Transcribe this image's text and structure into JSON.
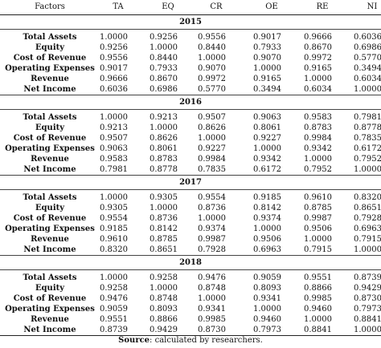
{
  "header": [
    "Factors",
    "TA",
    "EQ",
    "CR",
    "OE",
    "RE",
    "NI"
  ],
  "sections": [
    {
      "year": "2015",
      "rows": [
        {
          "factor": "Total Assets",
          "values": [
            "1.0000",
            "0.9256",
            "0.9556",
            "0.9017",
            "0.9666",
            "0.6036"
          ]
        },
        {
          "factor": "Equity",
          "values": [
            "0.9256",
            "1.0000",
            "0.8440",
            "0.7933",
            "0.8670",
            "0.6986"
          ]
        },
        {
          "factor": "Cost of Revenue",
          "values": [
            "0.9556",
            "0.8440",
            "1.0000",
            "0.9070",
            "0.9972",
            "0.5770"
          ]
        },
        {
          "factor": "Operating Expenses",
          "values": [
            "0.9017",
            "0.7933",
            "0.9070",
            "1.0000",
            "0.9165",
            "0.3494"
          ]
        },
        {
          "factor": "Revenue",
          "values": [
            "0.9666",
            "0.8670",
            "0.9972",
            "0.9165",
            "1.0000",
            "0.6034"
          ]
        },
        {
          "factor": "Net Income",
          "values": [
            "0.6036",
            "0.6986",
            "0.5770",
            "0.3494",
            "0.6034",
            "1.0000"
          ]
        }
      ]
    },
    {
      "year": "2016",
      "rows": [
        {
          "factor": "Total Assets",
          "values": [
            "1.0000",
            "0.9213",
            "0.9507",
            "0.9063",
            "0.9583",
            "0.7981"
          ]
        },
        {
          "factor": "Equity",
          "values": [
            "0.9213",
            "1.0000",
            "0.8626",
            "0.8061",
            "0.8783",
            "0.8778"
          ]
        },
        {
          "factor": "Cost of Revenue",
          "values": [
            "0.9507",
            "0.8626",
            "1.0000",
            "0.9227",
            "0.9984",
            "0.7835"
          ]
        },
        {
          "factor": "Operating Expenses",
          "values": [
            "0.9063",
            "0.8061",
            "0.9227",
            "1.0000",
            "0.9342",
            "0.6172"
          ]
        },
        {
          "factor": "Revenue",
          "values": [
            "0.9583",
            "0.8783",
            "0.9984",
            "0.9342",
            "1.0000",
            "0.7952"
          ]
        },
        {
          "factor": "Net Income",
          "values": [
            "0.7981",
            "0.8778",
            "0.7835",
            "0.6172",
            "0.7952",
            "1.0000"
          ]
        }
      ]
    },
    {
      "year": "2017",
      "rows": [
        {
          "factor": "Total Assets",
          "values": [
            "1.0000",
            "0.9305",
            "0.9554",
            "0.9185",
            "0.9610",
            "0.8320"
          ]
        },
        {
          "factor": "Equity",
          "values": [
            "0.9305",
            "1.0000",
            "0.8736",
            "0.8142",
            "0.8785",
            "0.8651"
          ]
        },
        {
          "factor": "Cost of Revenue",
          "values": [
            "0.9554",
            "0.8736",
            "1.0000",
            "0.9374",
            "0.9987",
            "0.7928"
          ]
        },
        {
          "factor": "Operating Expenses",
          "values": [
            "0.9185",
            "0.8142",
            "0.9374",
            "1.0000",
            "0.9506",
            "0.6963"
          ]
        },
        {
          "factor": "Revenue",
          "values": [
            "0.9610",
            "0.8785",
            "0.9987",
            "0.9506",
            "1.0000",
            "0.7915"
          ]
        },
        {
          "factor": "Net Income",
          "values": [
            "0.8320",
            "0.8651",
            "0.7928",
            "0.6963",
            "0.7915",
            "1.0000"
          ]
        }
      ]
    },
    {
      "year": "2018",
      "rows": [
        {
          "factor": "Total Assets",
          "values": [
            "1.0000",
            "0.9258",
            "0.9476",
            "0.9059",
            "0.9551",
            "0.8739"
          ]
        },
        {
          "factor": "Equity",
          "values": [
            "0.9258",
            "1.0000",
            "0.8748",
            "0.8093",
            "0.8866",
            "0.9429"
          ]
        },
        {
          "factor": "Cost of Revenue",
          "values": [
            "0.9476",
            "0.8748",
            "1.0000",
            "0.9341",
            "0.9985",
            "0.8730"
          ]
        },
        {
          "factor": "Operating Expenses",
          "values": [
            "0.9059",
            "0.8093",
            "0.9341",
            "1.0000",
            "0.9460",
            "0.7973"
          ]
        },
        {
          "factor": "Revenue",
          "values": [
            "0.9551",
            "0.8866",
            "0.9985",
            "0.9460",
            "1.0000",
            "0.8841"
          ]
        },
        {
          "factor": "Net Income",
          "values": [
            "0.8739",
            "0.9429",
            "0.8730",
            "0.7973",
            "0.8841",
            "1.0000"
          ]
        }
      ]
    }
  ],
  "source": {
    "label": "Source",
    "text": ": calculated by researchers."
  }
}
